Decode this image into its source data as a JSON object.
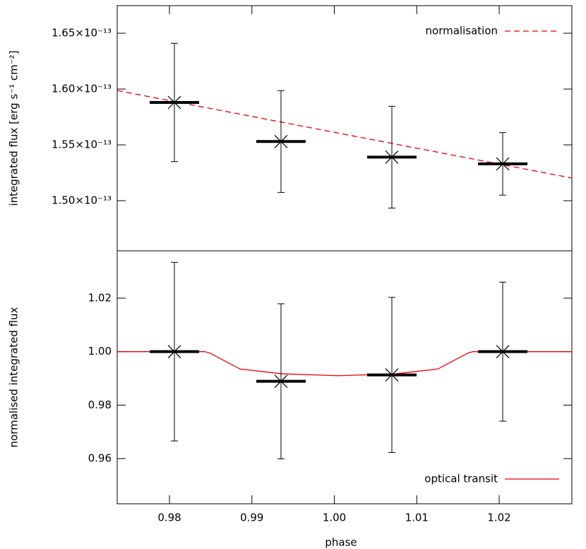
{
  "chart_data": [
    {
      "type": "errorbar",
      "ylabel": "integrated flux [erg s⁻¹ cm⁻²]",
      "xlim": [
        0.97366,
        1.02882
      ],
      "ylim": [
        1.4551e-13,
        1.6747e-13
      ],
      "yticks": [
        {
          "value": 1.5e-13,
          "label": "1.50×10⁻¹³"
        },
        {
          "value": 1.55e-13,
          "label": "1.55×10⁻¹³"
        },
        {
          "value": 1.6e-13,
          "label": "1.60×10⁻¹³"
        },
        {
          "value": 1.65e-13,
          "label": "1.65×10⁻¹³"
        }
      ],
      "x": [
        0.9806,
        0.99353,
        1.00698,
        1.02043
      ],
      "xerr": [
        0.003,
        0.003,
        0.003,
        0.003
      ],
      "values": [
        1.588e-13,
        1.553e-13,
        1.539e-13,
        1.533e-13
      ],
      "errors": [
        5.3e-15,
        4.56e-15,
        4.56e-15,
        2.8e-15
      ],
      "color": "#000000",
      "lines": [
        {
          "name": "normalisation",
          "color": "#e8000b",
          "dashed": true,
          "x": [
            0.97366,
            1.02882
          ],
          "values": [
            1.5987e-13,
            1.5203e-13
          ]
        }
      ],
      "legend": "upper right"
    },
    {
      "type": "errorbar",
      "xlabel": "phase",
      "ylabel": "normalised integrated flux",
      "xlim": [
        0.97366,
        1.02882
      ],
      "ylim": [
        0.9431,
        1.0377
      ],
      "xticks": [
        0.98,
        0.99,
        {
          "value": 1.0,
          "label": "1.00"
        },
        1.01,
        1.02
      ],
      "yticks": [
        {
          "value": 0.96,
          "label": "0.96"
        },
        {
          "value": 0.98,
          "label": "0.98"
        },
        {
          "value": 1.0,
          "label": "1.00"
        },
        {
          "value": 1.02,
          "label": "1.02"
        }
      ],
      "x": [
        0.9806,
        0.99353,
        1.00698,
        1.02043
      ],
      "xerr": [
        0.003,
        0.003,
        0.003,
        0.003
      ],
      "values": [
        1.0,
        0.9889,
        0.9913,
        1.0
      ],
      "errors": [
        0.0334,
        0.029,
        0.029,
        0.026
      ],
      "color": "#000000",
      "lines": [
        {
          "name": "optical transit",
          "color": "#e8000b",
          "dashed": false,
          "x": [
            0.97366,
            0.98428,
            0.98488,
            0.98642,
            0.98857,
            0.9937,
            1.00056,
            1.00741,
            1.01255,
            1.01469,
            1.01623,
            1.01683,
            1.02882
          ],
          "values": [
            1.0,
            1.0,
            0.9995,
            0.997,
            0.9935,
            0.9917,
            0.991,
            0.9917,
            0.9935,
            0.997,
            0.9995,
            1.0,
            1.0
          ]
        }
      ],
      "legend": "lower right"
    }
  ]
}
